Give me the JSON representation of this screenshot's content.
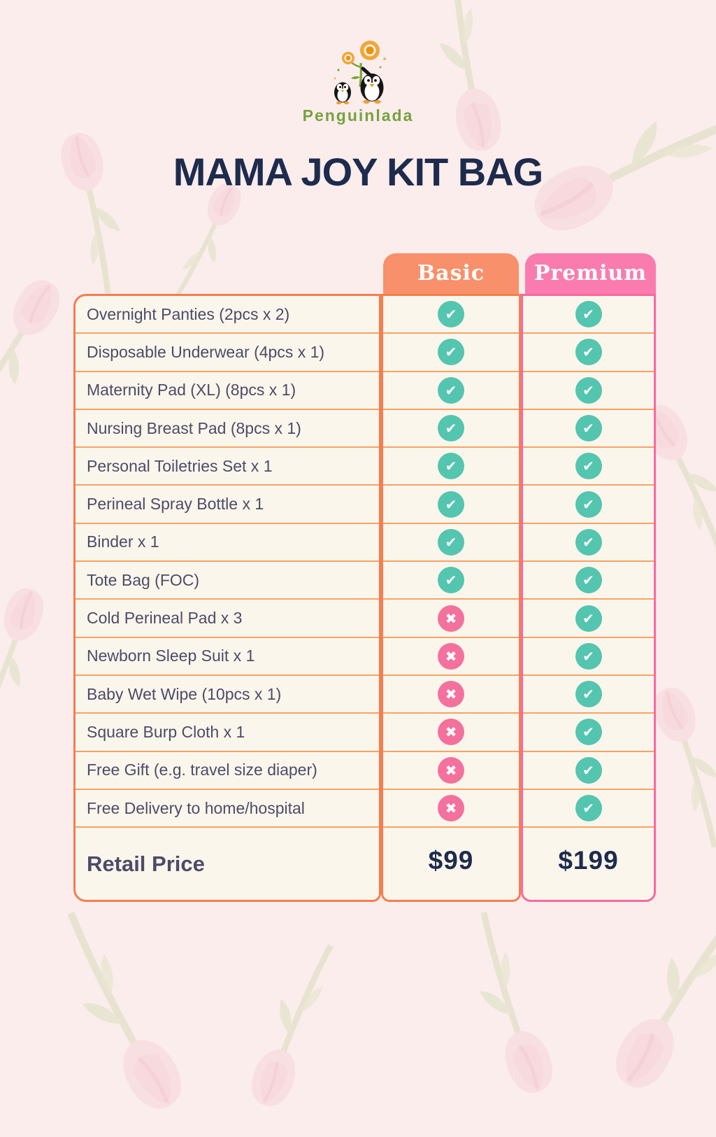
{
  "brand": {
    "name": "Penguinlada"
  },
  "title": "MAMA JOY KIT BAG",
  "table": {
    "columns": [
      {
        "id": "basic",
        "label": "Basic",
        "color": "#F8906B"
      },
      {
        "id": "premium",
        "label": "Premium",
        "color": "#FA7CAE"
      }
    ],
    "rows": [
      {
        "label": "Overnight Panties (2pcs x 2)",
        "basic": true,
        "premium": true
      },
      {
        "label": "Disposable Underwear (4pcs x 1)",
        "basic": true,
        "premium": true
      },
      {
        "label": "Maternity Pad (XL) (8pcs x 1)",
        "basic": true,
        "premium": true
      },
      {
        "label": "Nursing Breast Pad (8pcs x 1)",
        "basic": true,
        "premium": true
      },
      {
        "label": "Personal Toiletries Set x 1",
        "basic": true,
        "premium": true
      },
      {
        "label": "Perineal Spray Bottle x 1",
        "basic": true,
        "premium": true
      },
      {
        "label": "Binder x 1",
        "basic": true,
        "premium": true
      },
      {
        "label": "Tote Bag (FOC)",
        "basic": true,
        "premium": true
      },
      {
        "label": "Cold Perineal Pad x 3",
        "basic": false,
        "premium": true
      },
      {
        "label": "Newborn Sleep Suit x 1",
        "basic": false,
        "premium": true
      },
      {
        "label": "Baby Wet Wipe (10pcs x 1)",
        "basic": false,
        "premium": true
      },
      {
        "label": "Square Burp Cloth x 1",
        "basic": false,
        "premium": true
      },
      {
        "label": "Free Gift (e.g. travel size diaper)",
        "basic": false,
        "premium": true
      },
      {
        "label": "Free Delivery to home/hospital",
        "basic": false,
        "premium": true
      }
    ],
    "price_row": {
      "label": "Retail Price",
      "basic": "$99",
      "premium": "$199"
    }
  },
  "icons": {
    "check": "✔",
    "cross": "✖"
  },
  "colors": {
    "background": "#FBEDEC",
    "cell_background": "#FBF6EC",
    "basic_header": "#F8906B",
    "premium_header": "#FA7CAE",
    "orange_border": "#F57E4F",
    "orange_divider": "#F9A263",
    "pink_border": "#F9699F",
    "check_teal": "#54C5AF",
    "cross_pink": "#F4719E",
    "title_navy": "#1D2B4D",
    "item_text": "#4D4B68",
    "logo_green": "#76A23F"
  }
}
